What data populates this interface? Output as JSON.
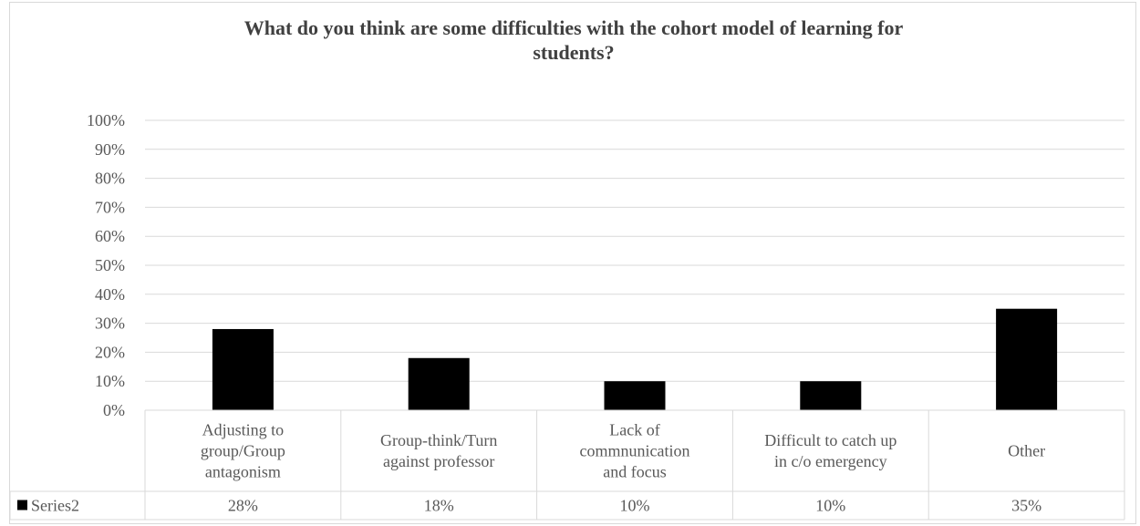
{
  "chart_data": {
    "type": "bar",
    "title": "What do you think are some difficulties with the cohort model of learning for students?",
    "title_lines": [
      "What do you think are some difficulties with the cohort model of learning for",
      "students?"
    ],
    "categories": [
      "Adjusting to group/Group antagonism",
      "Group-think/Turn against professor",
      "Lack of commnunication and focus",
      "Difficult to catch up in c/o emergency",
      "Other"
    ],
    "category_lines": [
      [
        "Adjusting to",
        "group/Group",
        "antagonism"
      ],
      [
        "Group-think/Turn",
        "against professor"
      ],
      [
        "Lack of",
        "commnunication",
        "and focus"
      ],
      [
        "Difficult to catch up",
        "in c/o emergency"
      ],
      [
        "Other"
      ]
    ],
    "series": [
      {
        "name": "Series2",
        "values": [
          28,
          18,
          10,
          10,
          35
        ],
        "color": "#000000"
      }
    ],
    "value_labels": [
      "28%",
      "18%",
      "10%",
      "10%",
      "35%"
    ],
    "ylim": [
      0,
      100
    ],
    "yticks": [
      "0%",
      "10%",
      "20%",
      "30%",
      "40%",
      "50%",
      "60%",
      "70%",
      "80%",
      "90%",
      "100%"
    ],
    "xlabel": "",
    "ylabel": "",
    "grid": true,
    "legend": "data-table",
    "colors": {
      "bar": "#000000",
      "grid": "#d9d9d9",
      "text": "#595959",
      "title": "#404040"
    }
  }
}
